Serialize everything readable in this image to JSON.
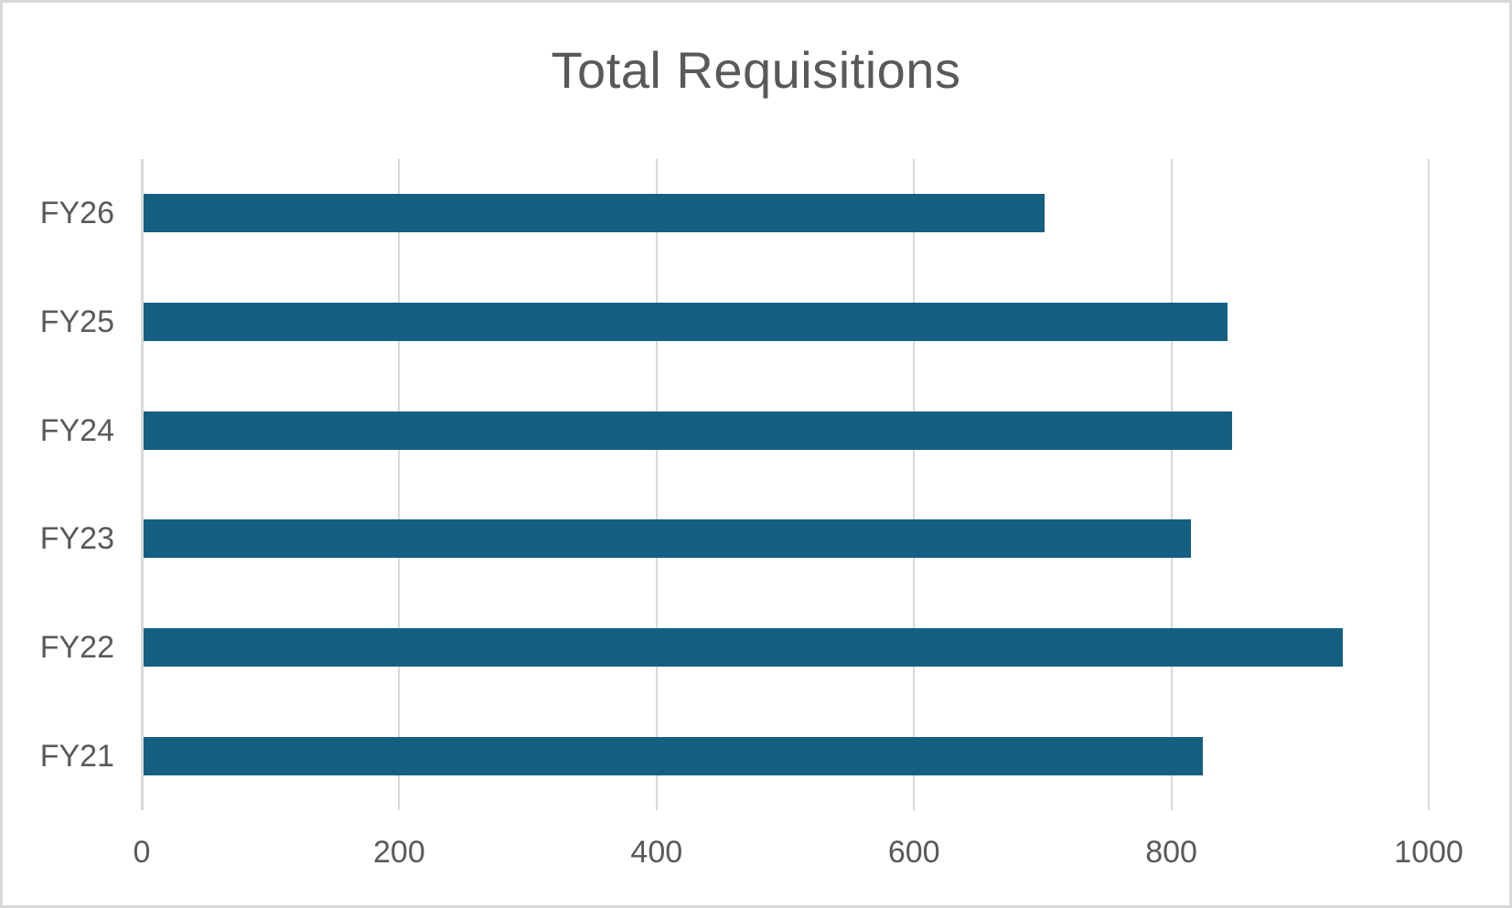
{
  "chart_data": {
    "type": "bar",
    "orientation": "horizontal",
    "title": "Total Requisitions",
    "categories": [
      "FY26",
      "FY25",
      "FY24",
      "FY23",
      "FY22",
      "FY21"
    ],
    "values": [
      700,
      842,
      846,
      814,
      932,
      823
    ],
    "x_ticks": [
      0,
      200,
      400,
      600,
      800,
      1000
    ],
    "xlim": [
      0,
      1000
    ],
    "xlabel": "",
    "ylabel": "",
    "grid": true,
    "legend": false,
    "colors": {
      "bar_fill": "#156082",
      "gridline": "#d9d9d9",
      "axis_line": "#d9d9d9",
      "text": "#595959",
      "background": "#ffffff",
      "border": "#d9d9d9"
    }
  }
}
